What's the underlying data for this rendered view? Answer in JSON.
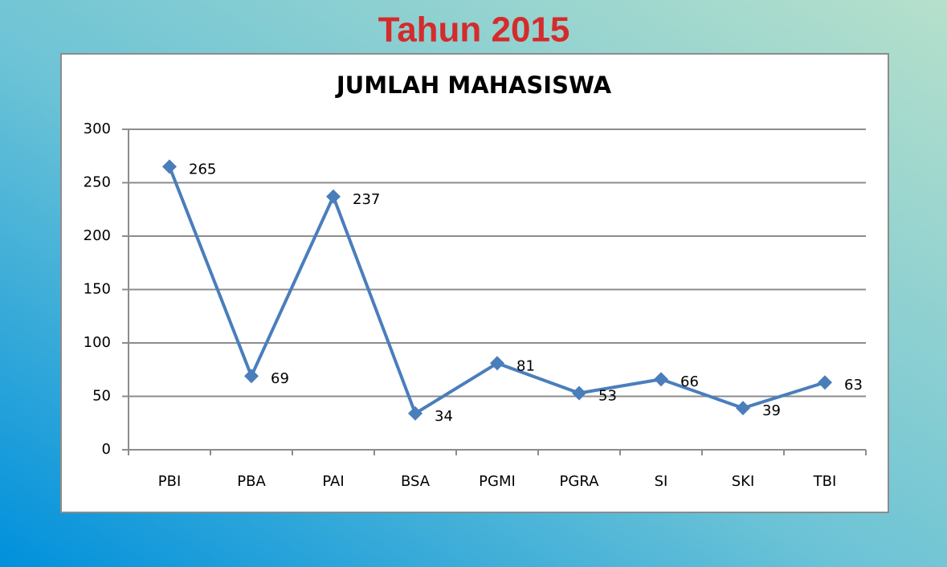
{
  "heading": "Tahun 2015",
  "chart_data": {
    "type": "line",
    "title": "JUMLAH MAHASISWA",
    "categories": [
      "PBI",
      "PBA",
      "PAI",
      "BSA",
      "PGMI",
      "PGRA",
      "SI",
      "SKI",
      "TBI"
    ],
    "values": [
      265,
      69,
      237,
      34,
      81,
      53,
      66,
      39,
      63
    ],
    "color": "#4a7ebb",
    "ylim": [
      0,
      300
    ],
    "yticks": [
      0,
      50,
      100,
      150,
      200,
      250,
      300
    ],
    "grid": true,
    "data_labels": true
  }
}
